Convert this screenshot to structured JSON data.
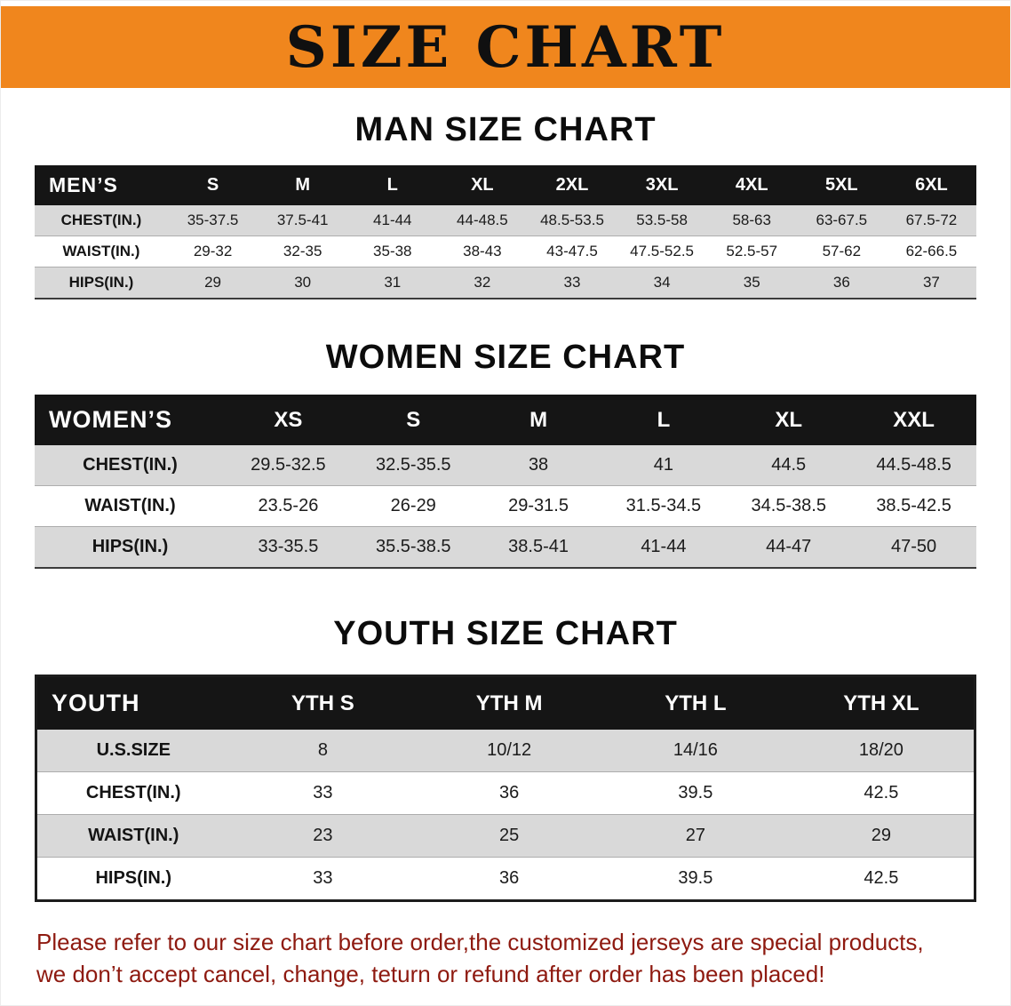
{
  "banner": {
    "title": "SIZE CHART",
    "background": "#f0861d"
  },
  "chart_data": [
    {
      "type": "table",
      "title": "MAN SIZE CHART",
      "header": [
        "MEN’S",
        "S",
        "M",
        "L",
        "XL",
        "2XL",
        "3XL",
        "4XL",
        "5XL",
        "6XL"
      ],
      "rows": [
        {
          "label": "CHEST(IN.)",
          "values": [
            "35-37.5",
            "37.5-41",
            "41-44",
            "44-48.5",
            "48.5-53.5",
            "53.5-58",
            "58-63",
            "63-67.5",
            "67.5-72"
          ]
        },
        {
          "label": "WAIST(IN.)",
          "values": [
            "29-32",
            "32-35",
            "35-38",
            "38-43",
            "43-47.5",
            "47.5-52.5",
            "52.5-57",
            "57-62",
            "62-66.5"
          ]
        },
        {
          "label": "HIPS(IN.)",
          "values": [
            "29",
            "30",
            "31",
            "32",
            "33",
            "34",
            "35",
            "36",
            "37"
          ]
        }
      ]
    },
    {
      "type": "table",
      "title": "WOMEN SIZE CHART",
      "header": [
        "WOMEN’S",
        "XS",
        "S",
        "M",
        "L",
        "XL",
        "XXL"
      ],
      "rows": [
        {
          "label": "CHEST(IN.)",
          "values": [
            "29.5-32.5",
            "32.5-35.5",
            "38",
            "41",
            "44.5",
            "44.5-48.5"
          ]
        },
        {
          "label": "WAIST(IN.)",
          "values": [
            "23.5-26",
            "26-29",
            "29-31.5",
            "31.5-34.5",
            "34.5-38.5",
            "38.5-42.5"
          ]
        },
        {
          "label": "HIPS(IN.)",
          "values": [
            "33-35.5",
            "35.5-38.5",
            "38.5-41",
            "41-44",
            "44-47",
            "47-50"
          ]
        }
      ]
    },
    {
      "type": "table",
      "title": "YOUTH SIZE CHART",
      "header": [
        "YOUTH",
        "YTH S",
        "YTH M",
        "YTH L",
        "YTH XL"
      ],
      "rows": [
        {
          "label": "U.S.SIZE",
          "values": [
            "8",
            "10/12",
            "14/16",
            "18/20"
          ]
        },
        {
          "label": "CHEST(IN.)",
          "values": [
            "33",
            "36",
            "39.5",
            "42.5"
          ]
        },
        {
          "label": "WAIST(IN.)",
          "values": [
            "23",
            "25",
            "27",
            "29"
          ]
        },
        {
          "label": "HIPS(IN.)",
          "values": [
            "33",
            "36",
            "39.5",
            "42.5"
          ]
        }
      ]
    }
  ],
  "footer": {
    "color": "#8e1a10",
    "lines": [
      "Please refer to our size chart before order,the customized jerseys are special products,",
      "we don’t accept cancel, change, teturn or refund after order has been placed!"
    ]
  }
}
